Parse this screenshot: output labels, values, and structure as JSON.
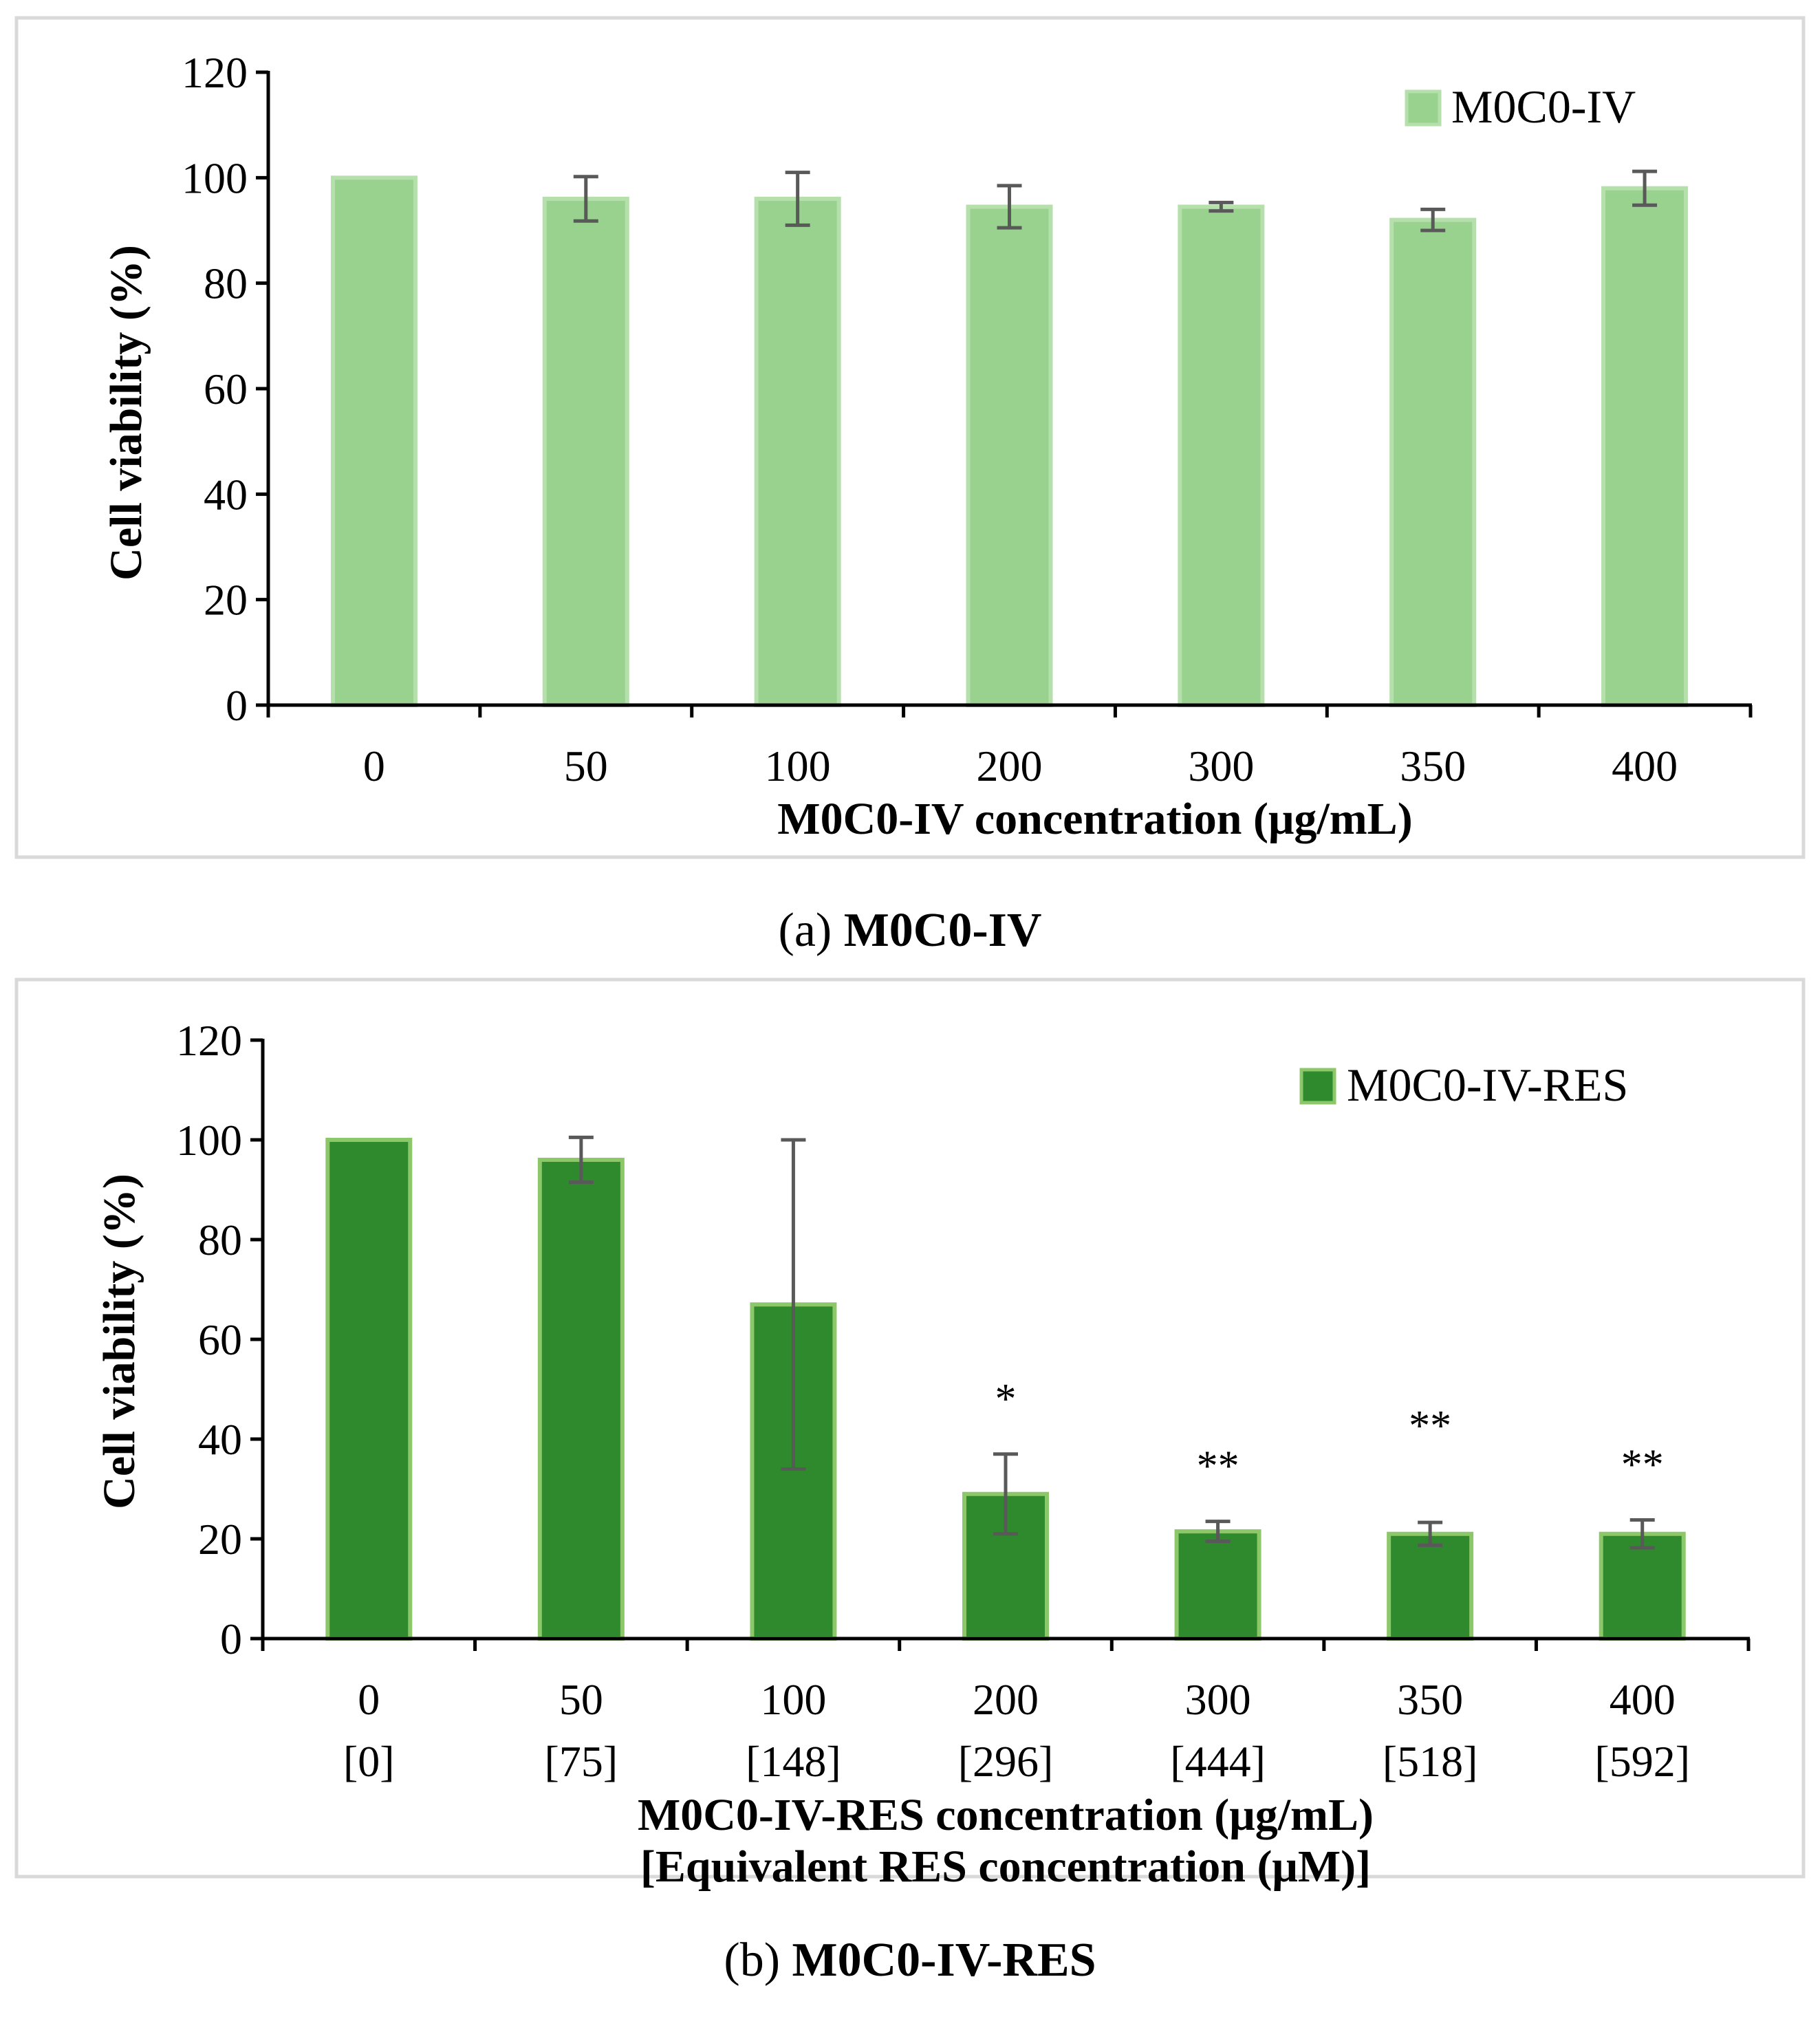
{
  "chart_data": [
    {
      "type": "bar",
      "categories": [
        "0",
        "50",
        "100",
        "200",
        "300",
        "350",
        "400"
      ],
      "series": [
        {
          "name": "M0C0-IV",
          "values": [
            100,
            96,
            96,
            94.5,
            94.5,
            92,
            98
          ],
          "errors": [
            0,
            4.2,
            5,
            4,
            0.8,
            2,
            3.2
          ],
          "fill": "#99d18f",
          "stroke": "#b5e0ab"
        }
      ],
      "ylabel": "Cell viability (%)",
      "xlabel": "M0C0-IV concentration (μg/mL)",
      "ylim": [
        0,
        120
      ],
      "yticks": [
        "0",
        "20",
        "40",
        "60",
        "80",
        "100",
        "120"
      ],
      "grid": false,
      "legend": "top-right",
      "caption_prefix": "(a) ",
      "caption_bold": "M0C0-IV"
    },
    {
      "type": "bar",
      "categories": [
        "0",
        "50",
        "100",
        "200",
        "300",
        "350",
        "400"
      ],
      "sub_categories": [
        "[0]",
        "[75]",
        "[148]",
        "[296]",
        "[444]",
        "[518]",
        "[592]"
      ],
      "series": [
        {
          "name": "M0C0-IV-RES",
          "values": [
            100,
            96,
            67,
            29,
            21.5,
            21,
            21
          ],
          "errors": [
            0,
            4.5,
            33,
            8,
            2,
            2.3,
            2.8
          ],
          "fill": "#2e8a2c",
          "stroke": "#8cc86a"
        }
      ],
      "annotations": [
        "",
        "",
        "",
        "*",
        "**",
        "**",
        "**"
      ],
      "ylabel": "Cell viability (%)",
      "xlabel": "M0C0-IV-RES concentration (μg/mL)",
      "xlabel2": "[Equivalent RES concentration (μM)]",
      "ylim": [
        0,
        120
      ],
      "yticks": [
        "0",
        "20",
        "40",
        "60",
        "80",
        "100",
        "120"
      ],
      "grid": false,
      "legend": "top-right",
      "caption_prefix": "(b) ",
      "caption_bold": "M0C0-IV-RES"
    }
  ],
  "colors": {
    "frame": "#d9d9d9",
    "axis": "#000000",
    "errorbar": "#595959"
  }
}
